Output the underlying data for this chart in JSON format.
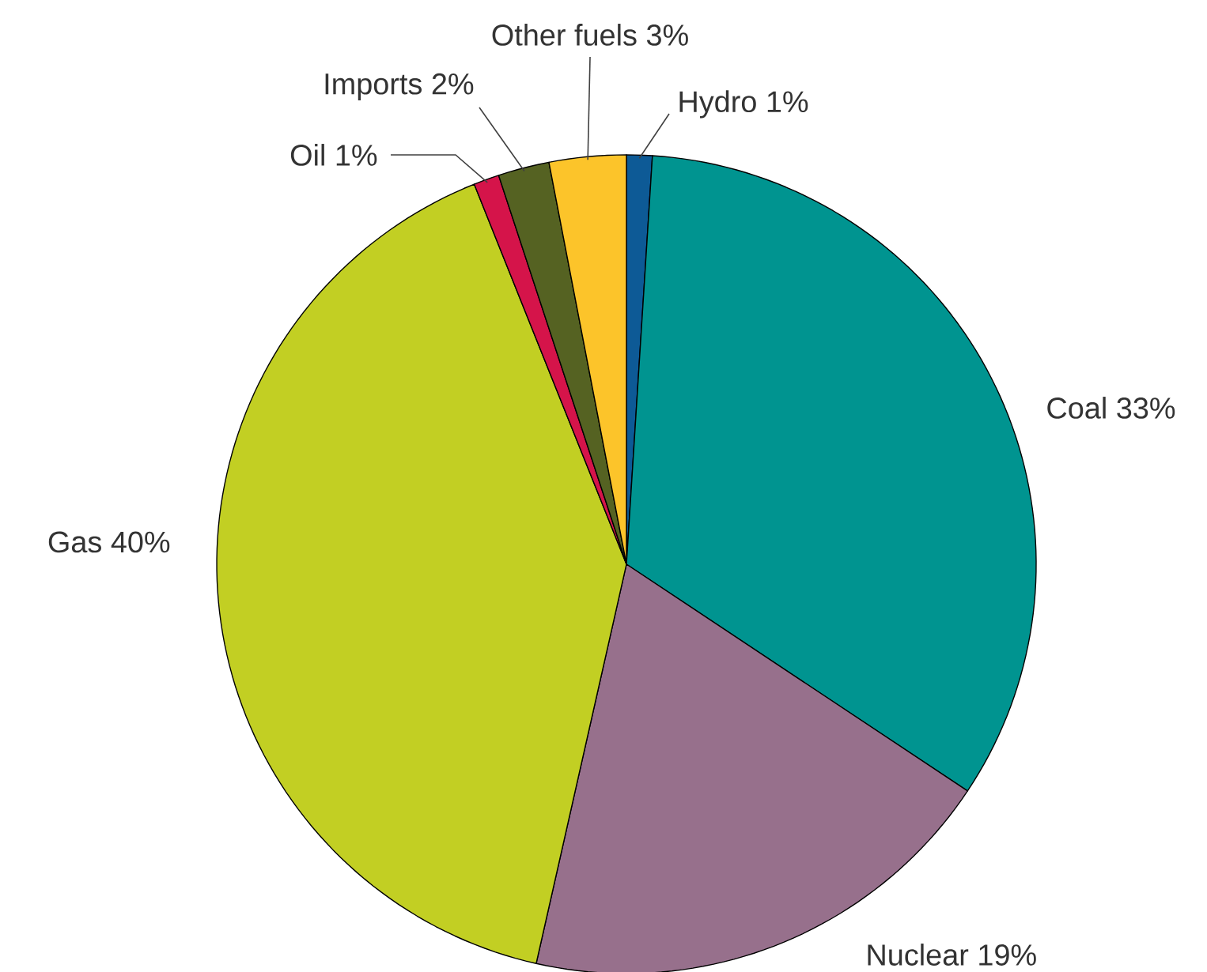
{
  "chart_data": {
    "type": "pie",
    "categories": [
      "Hydro",
      "Coal",
      "Nuclear",
      "Gas",
      "Oil",
      "Imports",
      "Other fuels"
    ],
    "values": [
      1,
      33,
      19,
      40,
      1,
      2,
      3
    ],
    "value_labels": [
      "1%",
      "33%",
      "19%",
      "40%",
      "1%",
      "2%",
      "3%"
    ],
    "colors": [
      "#0d5a96",
      "#009490",
      "#97708c",
      "#c2cf23",
      "#d5144a",
      "#556222",
      "#fcc42a"
    ]
  }
}
